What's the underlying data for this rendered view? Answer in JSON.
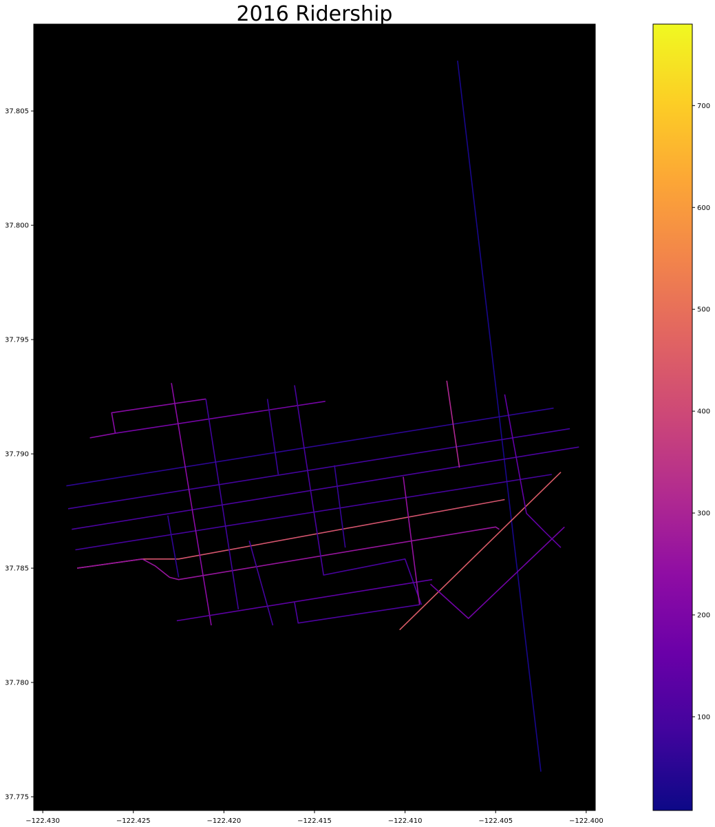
{
  "chart_data": {
    "type": "line",
    "title": "2016 Ridership",
    "xlabel": "",
    "ylabel": "",
    "xlim": [
      -122.4305,
      -122.3995
    ],
    "ylim": [
      37.7744,
      37.8088
    ],
    "x_ticks": [
      -122.43,
      -122.425,
      -122.42,
      -122.415,
      -122.41,
      -122.405,
      -122.4
    ],
    "x_tick_labels": [
      "−122.430",
      "−122.425",
      "−122.420",
      "−122.415",
      "−122.410",
      "−122.405",
      "−122.400"
    ],
    "y_ticks": [
      37.775,
      37.78,
      37.785,
      37.79,
      37.795,
      37.8,
      37.805
    ],
    "y_tick_labels": [
      "37.775",
      "37.780",
      "37.785",
      "37.790",
      "37.795",
      "37.800",
      "37.805"
    ],
    "plot_background": "#000000",
    "grid": false,
    "colormap": "plasma",
    "colorbar": {
      "range": [
        8,
        780
      ],
      "ticks": [
        100,
        200,
        300,
        400,
        500,
        600,
        700
      ],
      "tick_labels": [
        "100",
        "200",
        "300",
        "400",
        "500",
        "600",
        "700"
      ],
      "stops": [
        "#0d0887",
        "#41049d",
        "#6a00a8",
        "#8f0da4",
        "#b12a90",
        "#cc4778",
        "#e16462",
        "#f2844b",
        "#fca636",
        "#fcce25",
        "#f0f921"
      ]
    },
    "segments": [
      {
        "coords": [
          [
            -122.4071,
            37.8072
          ],
          [
            -122.4025,
            37.7761
          ]
        ],
        "value": 25
      },
      {
        "coords": [
          [
            -122.4287,
            37.7886
          ],
          [
            -122.4018,
            37.792
          ]
        ],
        "value": 55
      },
      {
        "coords": [
          [
            -122.4286,
            37.7876
          ],
          [
            -122.4009,
            37.7911
          ]
        ],
        "value": 90
      },
      {
        "coords": [
          [
            -122.4284,
            37.7867
          ],
          [
            -122.4004,
            37.7903
          ]
        ],
        "value": 105
      },
      {
        "coords": [
          [
            -122.4282,
            37.7858
          ],
          [
            -122.4019,
            37.7891
          ]
        ],
        "value": 95
      },
      {
        "coords": [
          [
            -122.4281,
            37.785
          ],
          [
            -122.4245,
            37.7854
          ],
          [
            -122.4225,
            37.7854
          ],
          [
            -122.4045,
            37.788
          ]
        ],
        "value": 430
      },
      {
        "coords": [
          [
            -122.4281,
            37.785
          ],
          [
            -122.4245,
            37.7854
          ],
          [
            -122.4238,
            37.7851
          ],
          [
            -122.423,
            37.7846
          ],
          [
            -122.4225,
            37.7845
          ],
          [
            -122.405,
            37.7868
          ],
          [
            -122.4048,
            37.7867
          ]
        ],
        "value": 260
      },
      {
        "coords": [
          [
            -122.4274,
            37.7907
          ],
          [
            -122.426,
            37.7909
          ],
          [
            -122.4262,
            37.7918
          ],
          [
            -122.421,
            37.7924
          ]
        ],
        "value": 225
      },
      {
        "coords": [
          [
            -122.426,
            37.7909
          ],
          [
            -122.4144,
            37.7923
          ]
        ],
        "value": 190
      },
      {
        "coords": [
          [
            -122.4229,
            37.7931
          ],
          [
            -122.4207,
            37.7825
          ]
        ],
        "value": 230
      },
      {
        "coords": [
          [
            -122.421,
            37.7924
          ],
          [
            -122.4192,
            37.7832
          ]
        ],
        "value": 85
      },
      {
        "coords": [
          [
            -122.4176,
            37.7924
          ],
          [
            -122.417,
            37.7891
          ]
        ],
        "value": 75
      },
      {
        "coords": [
          [
            -122.4161,
            37.793
          ],
          [
            -122.4145,
            37.7847
          ],
          [
            -122.41,
            37.7854
          ],
          [
            -122.4091,
            37.7834
          ]
        ],
        "value": 100
      },
      {
        "coords": [
          [
            -122.4226,
            37.7827
          ],
          [
            -122.4085,
            37.7845
          ]
        ],
        "value": 140
      },
      {
        "coords": [
          [
            -122.4231,
            37.7873
          ],
          [
            -122.4225,
            37.7846
          ]
        ],
        "value": 60
      },
      {
        "coords": [
          [
            -122.4186,
            37.7862
          ],
          [
            -122.4173,
            37.7825
          ]
        ],
        "value": 90
      },
      {
        "coords": [
          [
            -122.4139,
            37.7895
          ],
          [
            -122.4133,
            37.7859
          ]
        ],
        "value": 70
      },
      {
        "coords": [
          [
            -122.4161,
            37.7835
          ],
          [
            -122.4159,
            37.7826
          ],
          [
            -122.4092,
            37.7834
          ]
        ],
        "value": 110
      },
      {
        "coords": [
          [
            -122.4077,
            37.7932
          ],
          [
            -122.407,
            37.7894
          ]
        ],
        "value": 310
      },
      {
        "coords": [
          [
            -122.4101,
            37.789
          ],
          [
            -122.4092,
            37.7834
          ]
        ],
        "value": 250
      },
      {
        "coords": [
          [
            -122.4103,
            37.7823
          ],
          [
            -122.4014,
            37.7892
          ]
        ],
        "value": 450
      },
      {
        "coords": [
          [
            -122.4086,
            37.7843
          ],
          [
            -122.4065,
            37.7828
          ],
          [
            -122.4012,
            37.7868
          ]
        ],
        "value": 180
      },
      {
        "coords": [
          [
            -122.4045,
            37.7926
          ],
          [
            -122.4033,
            37.7874
          ],
          [
            -122.4023,
            37.7866
          ],
          [
            -122.4014,
            37.7859
          ]
        ],
        "value": 150
      }
    ]
  }
}
